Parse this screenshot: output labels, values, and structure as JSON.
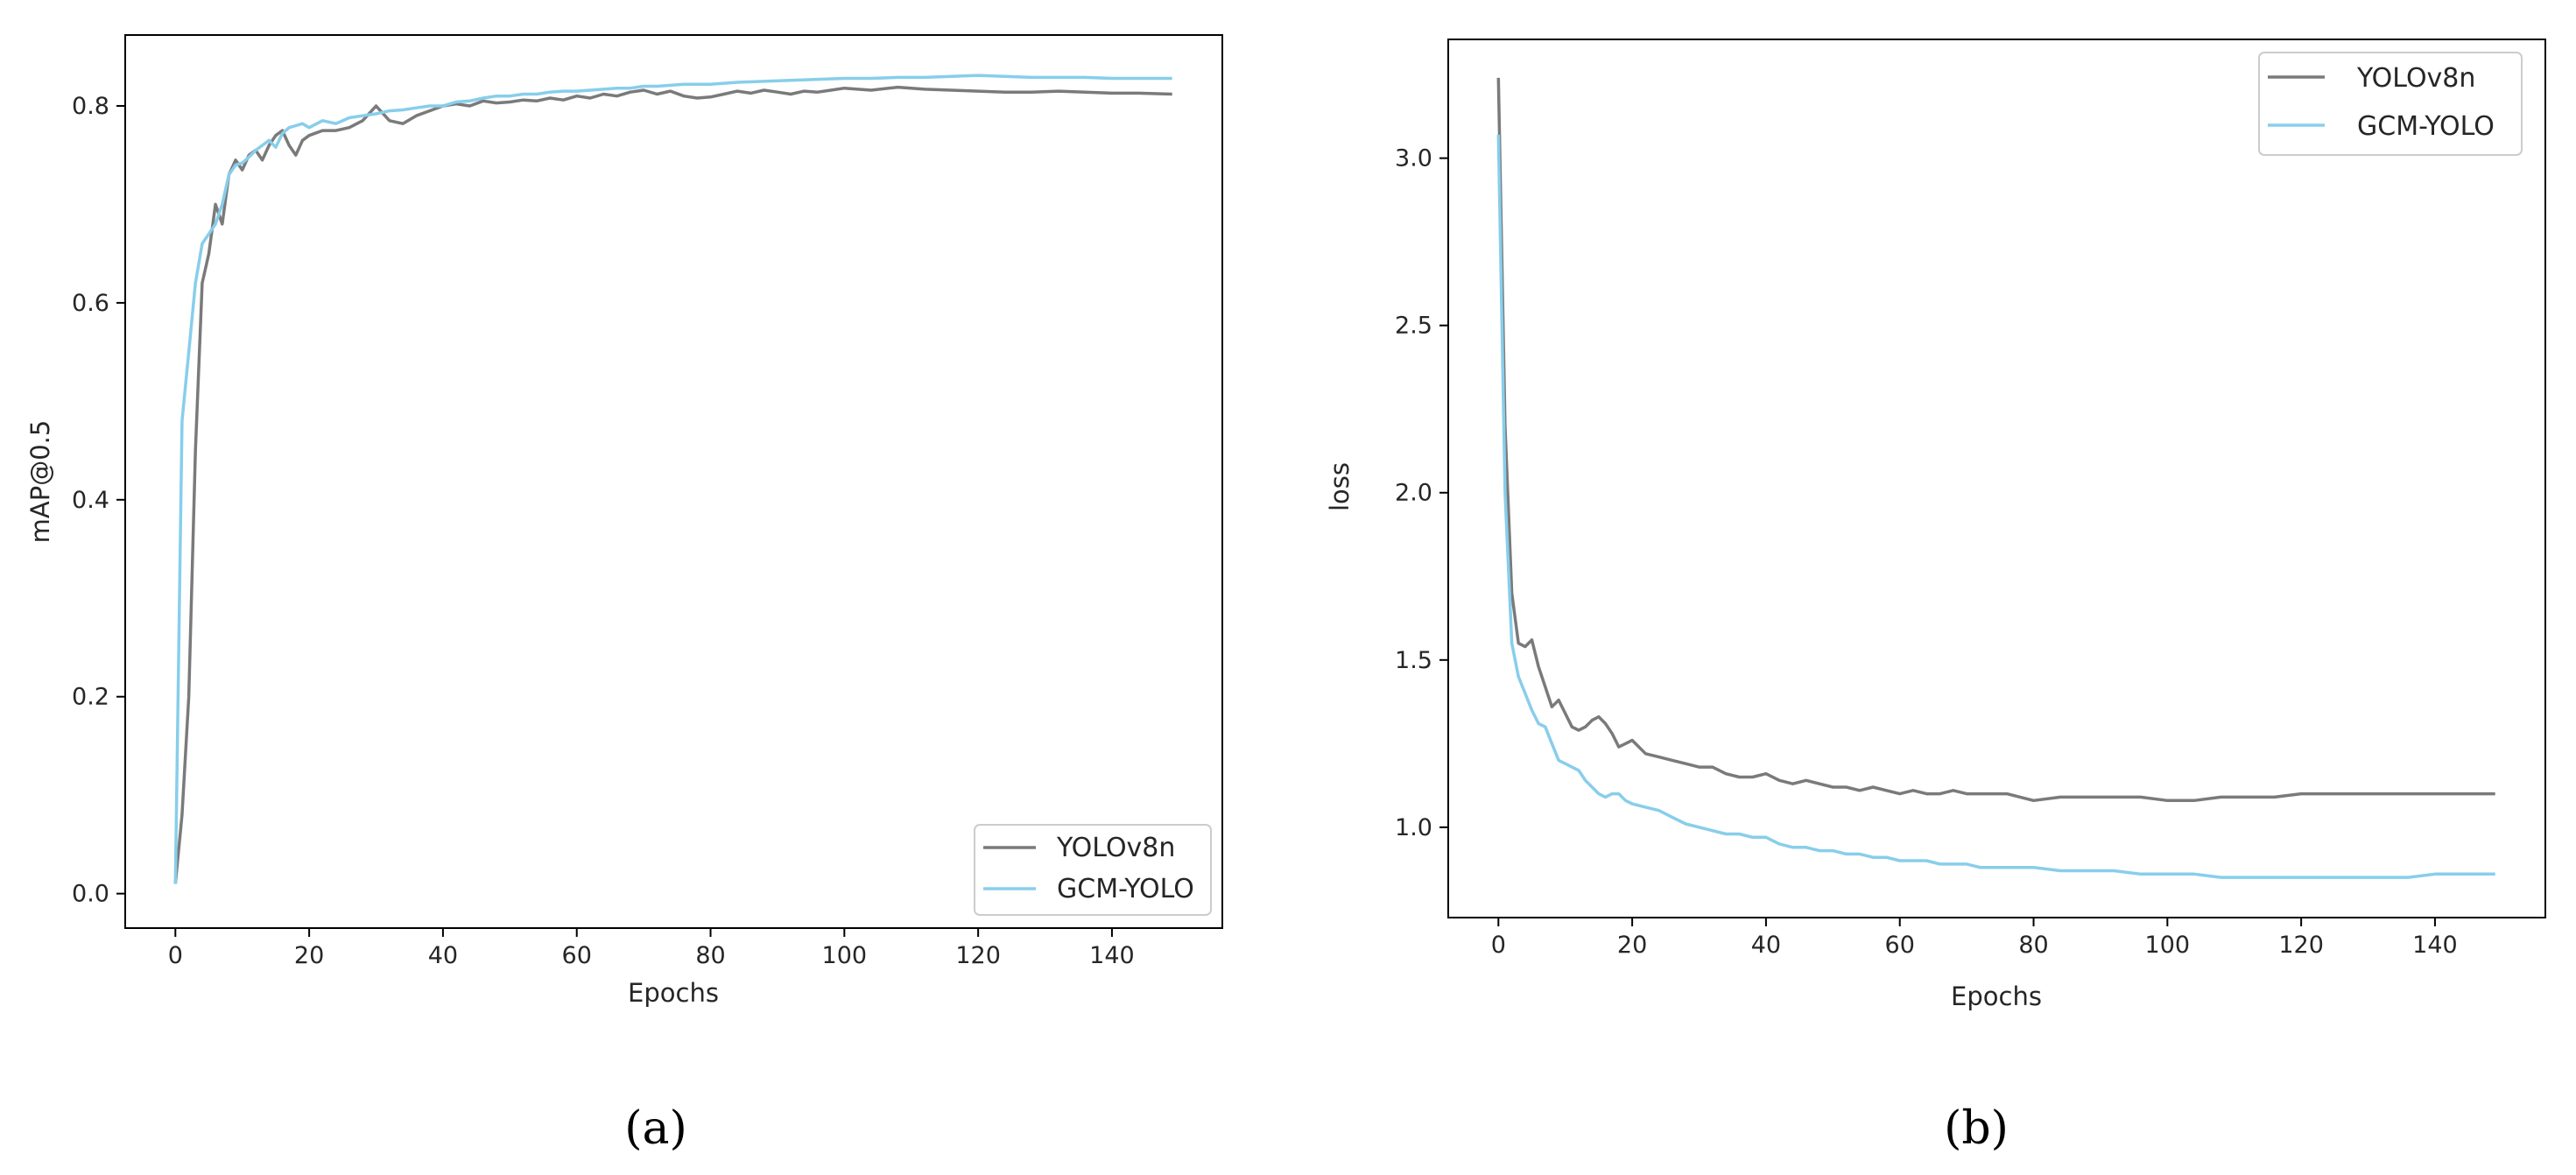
{
  "colors": {
    "yolov8n": "#7a7a7a",
    "gcm_yolo": "#87ceeb",
    "axes": "#000000",
    "text": "#262626"
  },
  "captions": {
    "a": "(a)",
    "b": "(b)"
  },
  "chart_data": [
    {
      "type": "line",
      "panel": "a",
      "title": "",
      "xlabel": "Epochs",
      "ylabel": "mAP@0.5",
      "xlim": [
        -7.5,
        156.5
      ],
      "ylim": [
        -0.035,
        0.872
      ],
      "xticks": [
        0,
        20,
        40,
        60,
        80,
        100,
        120,
        140
      ],
      "yticks": [
        0.0,
        0.2,
        0.4,
        0.6,
        0.8
      ],
      "xtick_labels": [
        "0",
        "20",
        "40",
        "60",
        "80",
        "100",
        "120",
        "140"
      ],
      "ytick_labels": [
        "0.0",
        "0.2",
        "0.4",
        "0.6",
        "0.8"
      ],
      "grid": false,
      "legend": "lower right",
      "series": [
        {
          "name": "YOLOv8n",
          "x": [
            0,
            1,
            2,
            3,
            4,
            5,
            6,
            7,
            8,
            9,
            10,
            11,
            12,
            13,
            14,
            15,
            16,
            17,
            18,
            19,
            20,
            22,
            24,
            26,
            28,
            30,
            32,
            34,
            36,
            38,
            40,
            42,
            44,
            46,
            48,
            50,
            52,
            54,
            56,
            58,
            60,
            62,
            64,
            66,
            68,
            70,
            72,
            74,
            76,
            78,
            80,
            82,
            84,
            86,
            88,
            90,
            92,
            94,
            96,
            98,
            100,
            104,
            108,
            112,
            116,
            120,
            124,
            128,
            132,
            136,
            140,
            144,
            149
          ],
          "values": [
            0.01,
            0.08,
            0.2,
            0.45,
            0.62,
            0.65,
            0.7,
            0.68,
            0.73,
            0.745,
            0.735,
            0.75,
            0.755,
            0.745,
            0.76,
            0.77,
            0.775,
            0.76,
            0.75,
            0.765,
            0.77,
            0.775,
            0.775,
            0.778,
            0.785,
            0.8,
            0.785,
            0.782,
            0.79,
            0.795,
            0.8,
            0.802,
            0.8,
            0.805,
            0.803,
            0.804,
            0.806,
            0.805,
            0.808,
            0.806,
            0.81,
            0.808,
            0.812,
            0.81,
            0.814,
            0.816,
            0.812,
            0.815,
            0.81,
            0.808,
            0.809,
            0.812,
            0.815,
            0.813,
            0.816,
            0.814,
            0.812,
            0.815,
            0.814,
            0.816,
            0.818,
            0.816,
            0.819,
            0.817,
            0.816,
            0.815,
            0.814,
            0.814,
            0.815,
            0.814,
            0.813,
            0.813,
            0.812
          ]
        },
        {
          "name": "GCM-YOLO",
          "x": [
            0,
            1,
            2,
            3,
            4,
            5,
            6,
            7,
            8,
            9,
            10,
            11,
            12,
            13,
            14,
            15,
            16,
            17,
            18,
            19,
            20,
            22,
            24,
            26,
            28,
            30,
            32,
            34,
            36,
            38,
            40,
            42,
            44,
            46,
            48,
            50,
            52,
            54,
            56,
            58,
            60,
            62,
            64,
            66,
            68,
            70,
            72,
            74,
            76,
            78,
            80,
            84,
            88,
            92,
            96,
            100,
            104,
            108,
            112,
            116,
            120,
            124,
            128,
            132,
            136,
            140,
            144,
            149
          ],
          "values": [
            0.01,
            0.48,
            0.55,
            0.62,
            0.66,
            0.67,
            0.68,
            0.7,
            0.73,
            0.74,
            0.742,
            0.748,
            0.755,
            0.76,
            0.765,
            0.758,
            0.772,
            0.778,
            0.78,
            0.782,
            0.778,
            0.785,
            0.782,
            0.788,
            0.79,
            0.792,
            0.795,
            0.796,
            0.798,
            0.8,
            0.8,
            0.804,
            0.805,
            0.808,
            0.81,
            0.81,
            0.812,
            0.812,
            0.814,
            0.815,
            0.815,
            0.816,
            0.817,
            0.818,
            0.818,
            0.82,
            0.82,
            0.821,
            0.822,
            0.822,
            0.822,
            0.824,
            0.825,
            0.826,
            0.827,
            0.828,
            0.828,
            0.829,
            0.829,
            0.83,
            0.831,
            0.83,
            0.829,
            0.829,
            0.829,
            0.828,
            0.828,
            0.828
          ]
        }
      ]
    },
    {
      "type": "line",
      "panel": "b",
      "title": "",
      "xlabel": "Epochs",
      "ylabel": "loss",
      "xlim": [
        -7.5,
        156.5
      ],
      "ylim": [
        0.73,
        3.355
      ],
      "xticks": [
        0,
        20,
        40,
        60,
        80,
        100,
        120,
        140
      ],
      "yticks": [
        1.0,
        1.5,
        2.0,
        2.5,
        3.0
      ],
      "xtick_labels": [
        "0",
        "20",
        "40",
        "60",
        "80",
        "100",
        "120",
        "140"
      ],
      "ytick_labels": [
        "1.0",
        "1.5",
        "2.0",
        "2.5",
        "3.0"
      ],
      "grid": false,
      "legend": "upper right",
      "series": [
        {
          "name": "YOLOv8n",
          "x": [
            0,
            1,
            2,
            3,
            4,
            5,
            6,
            7,
            8,
            9,
            10,
            11,
            12,
            13,
            14,
            15,
            16,
            17,
            18,
            19,
            20,
            22,
            24,
            26,
            28,
            30,
            32,
            34,
            36,
            38,
            40,
            42,
            44,
            46,
            48,
            50,
            52,
            54,
            56,
            58,
            60,
            62,
            64,
            66,
            68,
            70,
            72,
            74,
            76,
            78,
            80,
            84,
            88,
            92,
            96,
            100,
            104,
            108,
            112,
            116,
            120,
            124,
            128,
            132,
            136,
            140,
            144,
            149
          ],
          "values": [
            3.24,
            2.2,
            1.7,
            1.55,
            1.54,
            1.56,
            1.48,
            1.42,
            1.36,
            1.38,
            1.34,
            1.3,
            1.29,
            1.3,
            1.32,
            1.33,
            1.31,
            1.28,
            1.24,
            1.25,
            1.26,
            1.22,
            1.21,
            1.2,
            1.19,
            1.18,
            1.18,
            1.16,
            1.15,
            1.15,
            1.16,
            1.14,
            1.13,
            1.14,
            1.13,
            1.12,
            1.12,
            1.11,
            1.12,
            1.11,
            1.1,
            1.11,
            1.1,
            1.1,
            1.11,
            1.1,
            1.1,
            1.1,
            1.1,
            1.09,
            1.08,
            1.09,
            1.09,
            1.09,
            1.09,
            1.08,
            1.08,
            1.09,
            1.09,
            1.09,
            1.1,
            1.1,
            1.1,
            1.1,
            1.1,
            1.1,
            1.1,
            1.1
          ]
        },
        {
          "name": "GCM-YOLO",
          "x": [
            0,
            1,
            2,
            3,
            4,
            5,
            6,
            7,
            8,
            9,
            10,
            11,
            12,
            13,
            14,
            15,
            16,
            17,
            18,
            19,
            20,
            22,
            24,
            26,
            28,
            30,
            32,
            34,
            36,
            38,
            40,
            42,
            44,
            46,
            48,
            50,
            52,
            54,
            56,
            58,
            60,
            62,
            64,
            66,
            68,
            70,
            72,
            74,
            76,
            78,
            80,
            84,
            88,
            92,
            96,
            100,
            104,
            108,
            112,
            116,
            120,
            124,
            128,
            132,
            136,
            140,
            144,
            149
          ],
          "values": [
            3.07,
            2.0,
            1.55,
            1.45,
            1.4,
            1.35,
            1.31,
            1.3,
            1.25,
            1.2,
            1.19,
            1.18,
            1.17,
            1.14,
            1.12,
            1.1,
            1.09,
            1.1,
            1.1,
            1.08,
            1.07,
            1.06,
            1.05,
            1.03,
            1.01,
            1.0,
            0.99,
            0.98,
            0.98,
            0.97,
            0.97,
            0.95,
            0.94,
            0.94,
            0.93,
            0.93,
            0.92,
            0.92,
            0.91,
            0.91,
            0.9,
            0.9,
            0.9,
            0.89,
            0.89,
            0.89,
            0.88,
            0.88,
            0.88,
            0.88,
            0.88,
            0.87,
            0.87,
            0.87,
            0.86,
            0.86,
            0.86,
            0.85,
            0.85,
            0.85,
            0.85,
            0.85,
            0.85,
            0.85,
            0.85,
            0.86,
            0.86,
            0.86
          ]
        }
      ]
    }
  ]
}
